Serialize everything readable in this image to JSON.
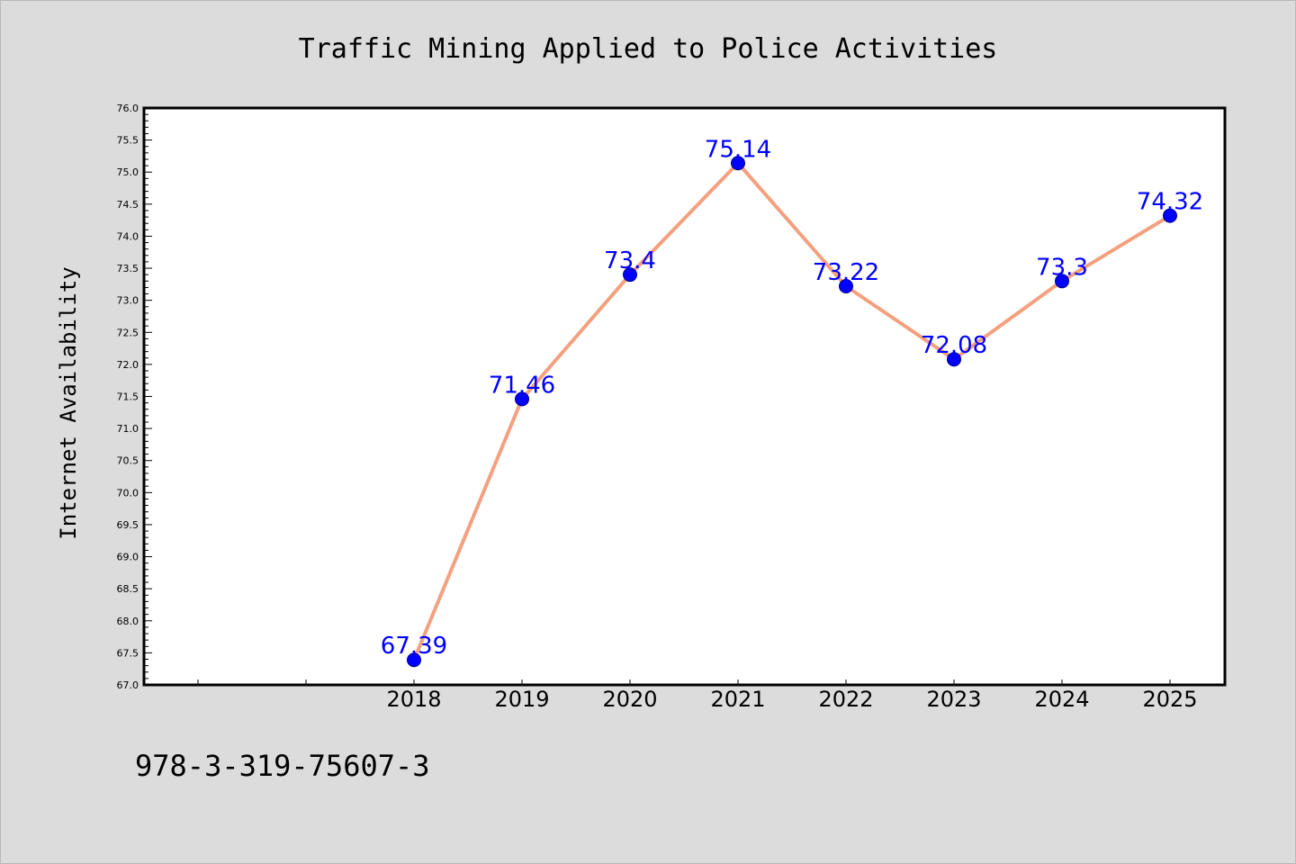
{
  "chart_data": {
    "type": "line",
    "title": "Traffic Mining Applied to Police Activities",
    "ylabel": "Internet Availability",
    "xlabel": "",
    "categories": [
      "2018",
      "2019",
      "2020",
      "2021",
      "2022",
      "2023",
      "2024",
      "2025"
    ],
    "series": [
      {
        "values": [
          67.39,
          71.46,
          73.4,
          75.14,
          73.22,
          72.08,
          73.3,
          74.32
        ],
        "labels": [
          "67.39",
          "71.46",
          "73.4",
          "75.14",
          "73.22",
          "72.08",
          "73.3",
          "74.32"
        ]
      }
    ],
    "ylim": [
      67.0,
      76.0
    ],
    "ytick_labels": [
      "67.0",
      "67.5",
      "68.0",
      "68.5",
      "69.0",
      "69.5",
      "70.0",
      "70.5",
      "71.0",
      "71.5",
      "72.0",
      "72.5",
      "73.0",
      "73.5",
      "74.0",
      "74.5",
      "75.0",
      "75.5",
      "76.0"
    ],
    "grid": false,
    "line_color": "#f4a07f",
    "marker_color": "#0000ff",
    "label_color": "#0000ff"
  },
  "footer": {
    "isbn": "978-3-319-75607-3"
  }
}
